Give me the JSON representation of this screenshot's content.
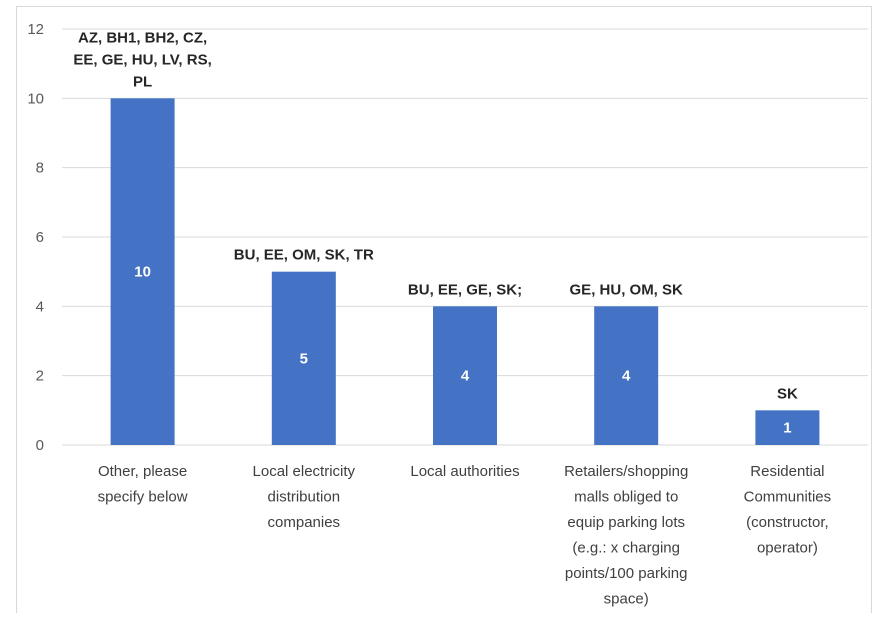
{
  "chart_data": {
    "type": "bar",
    "categories": [
      "Other, please specify below",
      "Local electricity distribution companies",
      "Local authorities",
      "Retailers/shopping malls obliged to equip parking lots (e.g.: x charging points/100 parking space)",
      "Residential Communities (constructor, operator)"
    ],
    "category_lines": [
      [
        "Other, please",
        "specify below"
      ],
      [
        "Local electricity",
        "distribution",
        "companies"
      ],
      [
        "Local authorities"
      ],
      [
        "Retailers/shopping",
        "malls obliged to",
        "equip parking lots",
        "(e.g.: x charging",
        "points/100 parking",
        "space)"
      ],
      [
        "Residential",
        "Communities",
        "(constructor,",
        "operator)"
      ]
    ],
    "values": [
      10,
      5,
      4,
      4,
      1
    ],
    "value_labels": [
      "10",
      "5",
      "4",
      "4",
      "1"
    ],
    "annotations": [
      [
        "AZ, BH1, BH2, CZ,",
        "EE, GE, HU, LV, RS,",
        "PL"
      ],
      [
        "BU, EE, OM, SK, TR"
      ],
      [
        "BU, EE, GE, SK;"
      ],
      [
        "GE, HU, OM, SK"
      ],
      [
        "SK"
      ]
    ],
    "yticks": [
      "0",
      "2",
      "4",
      "6",
      "8",
      "10",
      "12"
    ],
    "ylim": [
      0,
      12
    ],
    "grid": true,
    "legend": "none",
    "bar_color": "#4472c4"
  }
}
